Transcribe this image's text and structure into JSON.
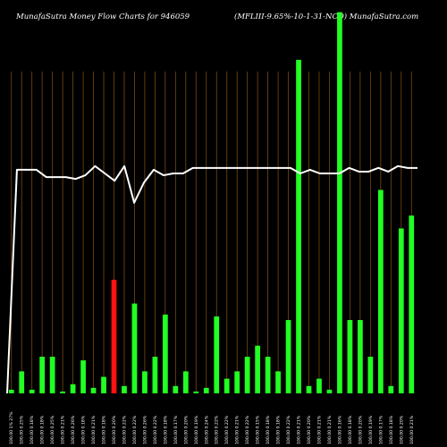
{
  "header": {
    "title_left": "MunafaSutra  Money Flow  Charts for 946059",
    "title_right": "(MFLIII-9.65%-10-1-31-NCD) MunafaSutra.com"
  },
  "colors": {
    "background": "#000000",
    "grid": "#7a4a12",
    "bar_up": "#22ff22",
    "bar_down": "#ff1111",
    "line": "#ffffff",
    "text": "#ffffff"
  },
  "chart_data": {
    "type": "bar",
    "grid": true,
    "ylim": [
      0,
      100
    ],
    "categories": [
      "100.00 1% 27%",
      "100.00 0.25%",
      "100.00 0.18%",
      "100.00 0.18%",
      "100.00 0.25%",
      "100.00 0.21%",
      "100.00 0.26%",
      "100.00 0.18%",
      "100.00 0.21%",
      "100.00 0.18%",
      "100.00 0.20%",
      "100.00 0.22%",
      "100.00 0.22%",
      "100.00 0.26%",
      "100.00 0.22%",
      "100.00 0.18%",
      "100.00 0.17%",
      "100.00 0.20%",
      "100.00 0.19%",
      "100.00 0.24%",
      "100.00 0.22%",
      "100.00 0.22%",
      "100.00 0.21%",
      "100.00 0.22%",
      "100.00 0.15%",
      "100.00 0.18%",
      "100.00 0.18%",
      "100.00 0.22%",
      "100.00 0.21%",
      "100.00 0.20%",
      "100.00 0.21%",
      "100.00 0.21%",
      "100.00 0.16%",
      "100.00 0.18%",
      "100.00 0.20%",
      "100.00 0.19%",
      "100.00 0.17%",
      "100.00 0.18%",
      "100.00 0.20%",
      "100.00 0.21%"
    ],
    "bars": [
      {
        "value": 1.0,
        "direction": "up"
      },
      {
        "value": 6.0,
        "direction": "up"
      },
      {
        "value": 1.0,
        "direction": "up"
      },
      {
        "value": 10.0,
        "direction": "up"
      },
      {
        "value": 10.0,
        "direction": "up"
      },
      {
        "value": 0.5,
        "direction": "up"
      },
      {
        "value": 2.5,
        "direction": "up"
      },
      {
        "value": 9.0,
        "direction": "up"
      },
      {
        "value": 1.5,
        "direction": "up"
      },
      {
        "value": 4.5,
        "direction": "up"
      },
      {
        "value": 31.0,
        "direction": "down"
      },
      {
        "value": 2.0,
        "direction": "up"
      },
      {
        "value": 24.5,
        "direction": "up"
      },
      {
        "value": 6.0,
        "direction": "up"
      },
      {
        "value": 10.0,
        "direction": "up"
      },
      {
        "value": 21.5,
        "direction": "up"
      },
      {
        "value": 2.0,
        "direction": "up"
      },
      {
        "value": 6.0,
        "direction": "up"
      },
      {
        "value": 0.5,
        "direction": "up"
      },
      {
        "value": 1.5,
        "direction": "up"
      },
      {
        "value": 21.0,
        "direction": "up"
      },
      {
        "value": 4.0,
        "direction": "up"
      },
      {
        "value": 6.0,
        "direction": "up"
      },
      {
        "value": 10.0,
        "direction": "up"
      },
      {
        "value": 13.0,
        "direction": "up"
      },
      {
        "value": 10.0,
        "direction": "up"
      },
      {
        "value": 6.0,
        "direction": "up"
      },
      {
        "value": 20.0,
        "direction": "up"
      },
      {
        "value": 91.0,
        "direction": "up"
      },
      {
        "value": 2.0,
        "direction": "up"
      },
      {
        "value": 4.0,
        "direction": "up"
      },
      {
        "value": 1.0,
        "direction": "up"
      },
      {
        "value": 104.0,
        "direction": "up"
      },
      {
        "value": 20.0,
        "direction": "up"
      },
      {
        "value": 20.0,
        "direction": "up"
      },
      {
        "value": 10.0,
        "direction": "up"
      },
      {
        "value": 55.5,
        "direction": "up"
      },
      {
        "value": 2.0,
        "direction": "up"
      },
      {
        "value": 45.0,
        "direction": "up"
      },
      {
        "value": 48.5,
        "direction": "up"
      }
    ],
    "line_values": [
      0.0,
      61.0,
      61.0,
      61.0,
      59.0,
      59.0,
      59.0,
      58.5,
      59.5,
      62.0,
      60.0,
      58.0,
      62.0,
      52.0,
      57.5,
      61.0,
      59.5,
      60.0,
      60.0,
      61.5,
      61.5,
      61.5,
      61.5,
      61.5,
      61.5,
      61.5,
      61.5,
      61.5,
      61.5,
      61.5,
      60.0,
      61.0,
      60.0,
      60.0,
      60.0,
      61.5,
      60.5,
      60.5,
      61.5,
      60.5,
      62.0,
      61.5,
      61.5
    ]
  }
}
